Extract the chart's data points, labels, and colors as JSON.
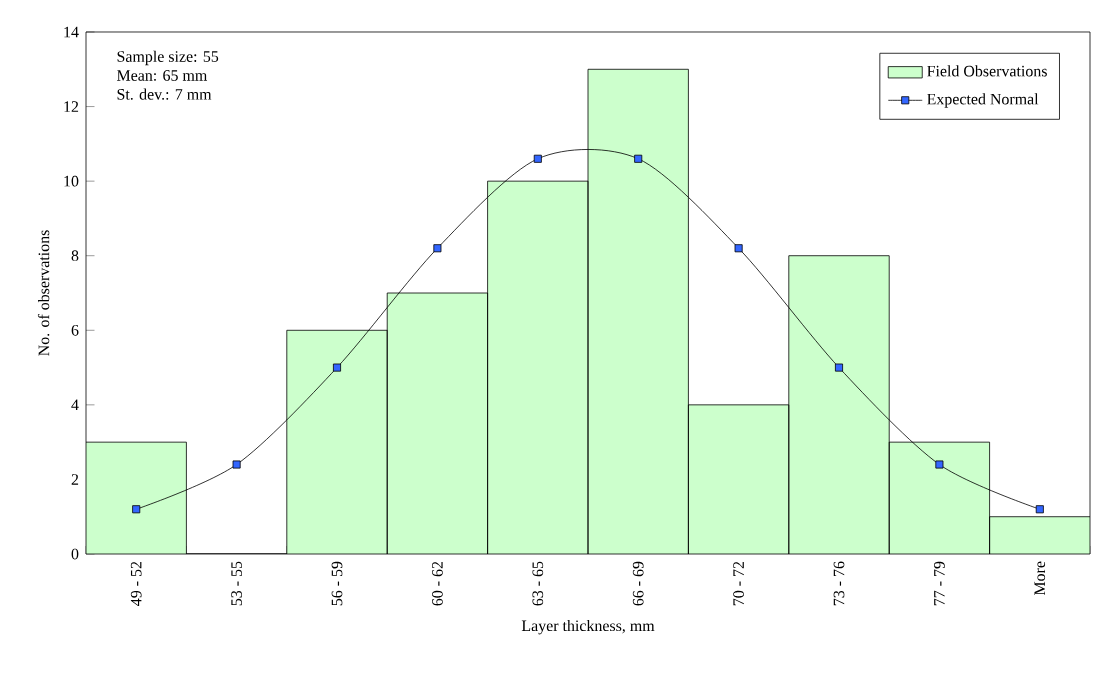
{
  "chart_data": {
    "type": "bar",
    "xlabel": "Layer thickness, mm",
    "ylabel": "No. of observations",
    "categories": [
      "49 - 52",
      "53 - 55",
      "56 - 59",
      "60 - 62",
      "63 - 65",
      "66 - 69",
      "70 - 72",
      "73 - 76",
      "77 - 79",
      "More"
    ],
    "series": [
      {
        "name": "Field Observations",
        "color": "#ccffcc",
        "values": [
          3,
          0,
          6,
          7,
          10,
          13,
          4,
          8,
          3,
          1
        ]
      },
      {
        "name": "Expected Normal",
        "type": "line",
        "color": "#000000",
        "values": [
          1.2,
          2.4,
          5.0,
          8.2,
          10.6,
          10.6,
          8.2,
          5.0,
          2.4,
          1.2
        ]
      }
    ],
    "ylim": [
      0,
      14
    ],
    "yticks": [
      0,
      2,
      4,
      6,
      8,
      10,
      12,
      14
    ],
    "legend": "top right",
    "marker": "square",
    "annotations": [
      "Sample size: 55",
      "Mean: 65 mm",
      "St. dev.: 7 mm"
    ]
  }
}
